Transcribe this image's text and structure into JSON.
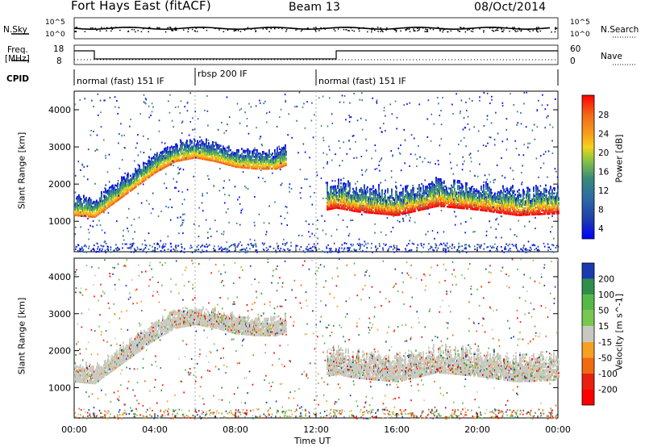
{
  "header": {
    "station": "Fort Hays East (fitACF)",
    "beam": "Beam 13",
    "date": "08/Oct/2014"
  },
  "summary_panels": {
    "nsky_label": "N.Sky",
    "nsky_ticks": [
      "10^5",
      "10^0"
    ],
    "nsearch_label": "N.Search",
    "nsearch_ticks": [
      "10^5",
      "10^0"
    ],
    "freq_label_1": "Freq.",
    "freq_label_2": "[MHz]",
    "freq_ticks": [
      "18",
      "8"
    ],
    "nave_label": "Nave",
    "nave_ticks": [
      "60",
      "0"
    ],
    "cpid_label": "CPID",
    "cpid_segments": [
      {
        "label": "normal (fast) 151 IF",
        "start": 0,
        "end": 6.0
      },
      {
        "label": "rbsp 200 IF",
        "start": 6.0,
        "end": 12.0
      },
      {
        "label": "normal (fast) 151 IF",
        "start": 12.0,
        "end": 24.0
      }
    ]
  },
  "chart_data": [
    {
      "type": "heatmap",
      "panel": "power",
      "xlabel": "",
      "ylabel": "Slant Range [km]",
      "xlim": [
        0,
        24
      ],
      "ylim": [
        180,
        4500
      ],
      "yticks": [
        1000,
        2000,
        3000,
        4000
      ],
      "colorbar": {
        "label": "Power [dB]",
        "ticks": [
          "28",
          "24",
          "20",
          "16",
          "12",
          "8",
          "4"
        ],
        "range": [
          0,
          30
        ],
        "colors": [
          "#0000ff",
          "#1f3fa8",
          "#2c6aa6",
          "#3a8a7a",
          "#43a25a",
          "#8dc63f",
          "#f6d21a",
          "#f7a21b",
          "#f26b18",
          "#e8321c",
          "#ff0000"
        ]
      },
      "features": [
        {
          "name": "main echo band",
          "t": [
            0,
            1,
            2,
            3,
            4,
            5,
            6,
            7,
            8,
            9,
            10,
            10.5
          ],
          "range_km": [
            1150,
            1100,
            1500,
            1900,
            2300,
            2600,
            2700,
            2600,
            2450,
            2400,
            2400,
            2500
          ]
        },
        {
          "name": "post-noon band",
          "t": [
            12.5,
            13,
            14,
            16,
            18,
            20,
            22,
            24
          ],
          "range_km": [
            1300,
            1350,
            1250,
            1150,
            1400,
            1300,
            1150,
            1200
          ]
        }
      ]
    },
    {
      "type": "heatmap",
      "panel": "velocity",
      "xlabel": "Time UT",
      "ylabel": "Slant Range [km]",
      "xlim": [
        0,
        24
      ],
      "ylim": [
        180,
        4500
      ],
      "xticks": [
        "00:00",
        "04:00",
        "08:00",
        "12:00",
        "16:00",
        "20:00",
        "00:00"
      ],
      "yticks": [
        1000,
        2000,
        3000,
        4000
      ],
      "colorbar": {
        "label": "Velocity [m s^-1]",
        "ticks": [
          "200",
          "100",
          "50",
          "15",
          "-15",
          "-50",
          "-100",
          "-200"
        ],
        "colors": [
          "#1b3ab0",
          "#2f8f4a",
          "#56b848",
          "#78c850",
          "#c8c8c0",
          "#f5a020",
          "#f06a10",
          "#e82010",
          "#ff0000"
        ]
      }
    }
  ]
}
